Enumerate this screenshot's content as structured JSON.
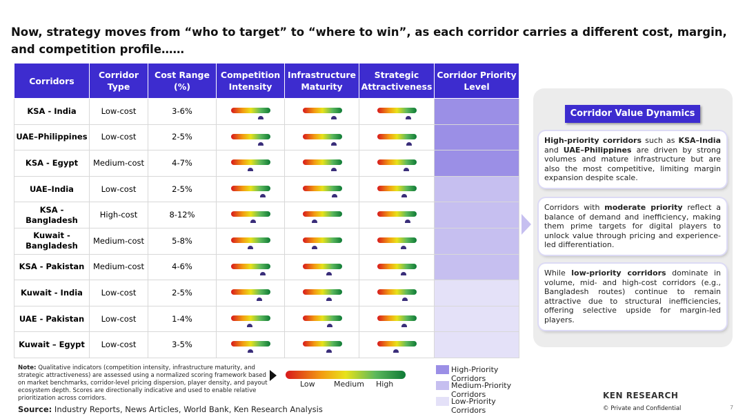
{
  "header": {
    "title": "Now, strategy moves from “who to target” to “where to win”, as each corridor carries a different cost, margin, and competition profile……"
  },
  "table": {
    "columns": [
      "Corridors",
      "Corridor Type",
      "Cost Range (%)",
      "Competition Intensity",
      "Infrastructure Maturity",
      "Strategic Attractiveness",
      "Corridor Priority Level"
    ],
    "rows": [
      {
        "corridor": "KSA - India",
        "type": "Low-cost",
        "cost": "3-6%",
        "indicators": [
          75,
          79,
          79
        ],
        "priority": 0
      },
      {
        "corridor": "UAE–Philippines",
        "type": "Low-cost",
        "cost": "2-5%",
        "indicators": [
          75,
          79,
          81
        ],
        "priority": 0
      },
      {
        "corridor": "KSA - Egypt",
        "type": "Medium-cost",
        "cost": "4-7%",
        "indicators": [
          49,
          79,
          74
        ],
        "priority": 0
      },
      {
        "corridor": "UAE–India",
        "type": "Low-cost",
        "cost": "2-5%",
        "indicators": [
          81,
          81,
          68
        ],
        "priority": 1
      },
      {
        "corridor": "KSA - Bangladesh",
        "type": "High-cost",
        "cost": "8-12%",
        "indicators": [
          56,
          30,
          77
        ],
        "priority": 1
      },
      {
        "corridor": "Kuwait - Bangladesh",
        "type": "Medium-cost",
        "cost": "5-8%",
        "indicators": [
          49,
          30,
          67
        ],
        "priority": 1
      },
      {
        "corridor": "KSA - Pakistan",
        "type": "Medium-cost",
        "cost": "4-6%",
        "indicators": [
          81,
          68,
          67
        ],
        "priority": 1
      },
      {
        "corridor": "Kuwait - India",
        "type": "Low-cost",
        "cost": "2-5%",
        "indicators": [
          72,
          68,
          70
        ],
        "priority": 2
      },
      {
        "corridor": "UAE - Pakistan",
        "type": "Low-cost",
        "cost": "1-4%",
        "indicators": [
          47,
          70,
          68
        ],
        "priority": 2
      },
      {
        "corridor": "Kuwait – Egypt",
        "type": "Low-cost",
        "cost": "3-5%",
        "indicators": [
          49,
          68,
          47
        ],
        "priority": 2
      }
    ]
  },
  "panel": {
    "title": "Corridor Value Dynamics",
    "cards": [
      [
        {
          "text": "High-priority corridors",
          "bold": true
        },
        {
          "text": " such as ",
          "bold": false
        },
        {
          "text": "KSA–India",
          "bold": true
        },
        {
          "text": " and ",
          "bold": false
        },
        {
          "text": "UAE–Philippines",
          "bold": true
        },
        {
          "text": " are driven by strong volumes and mature infrastructure but are also the most competitive, limiting margin expansion despite scale.",
          "bold": false
        }
      ],
      [
        {
          "text": "Corridors with ",
          "bold": false
        },
        {
          "text": "moderate priority",
          "bold": true
        },
        {
          "text": " reflect a balance of demand and inefficiency, making them prime targets for digital players to unlock value through pricing and experience-led differentiation.",
          "bold": false
        }
      ],
      [
        {
          "text": "While ",
          "bold": false
        },
        {
          "text": "low-priority corridors",
          "bold": true
        },
        {
          "text": " dominate in volume, mid- and high-cost corridors (e.g., Bangladesh routes) continue to remain attractive due to structural inefficiencies, offering selective upside for margin-led players.",
          "bold": false
        }
      ]
    ]
  },
  "footer": {
    "note_label": "Note:",
    "note": "Qualitative indicators (competition intensity, infrastructure maturity, and strategic attractiveness) are assessed using a normalized scoring framework based on market benchmarks, corridor-level pricing dispersion, player density, and payout ecosystem depth. Scores are directionally indicative and used to enable relative prioritization across corridors.",
    "scale_labels": [
      "Low",
      "Medium",
      "High"
    ],
    "legend": [
      {
        "label": "High-Priority Corridors",
        "color": "#9b8fe6"
      },
      {
        "label": "Medium-Priority Corridors",
        "color": "#c6bff0"
      },
      {
        "label": "Low-Priority Corridors",
        "color": "#e4e1f8"
      }
    ],
    "source_label": "Source:",
    "source": "Industry Reports, News Articles, World Bank, Ken Research Analysis",
    "logo": "KEN RESEARCH",
    "confidential": "©  Private and Confidential",
    "page": "7"
  }
}
